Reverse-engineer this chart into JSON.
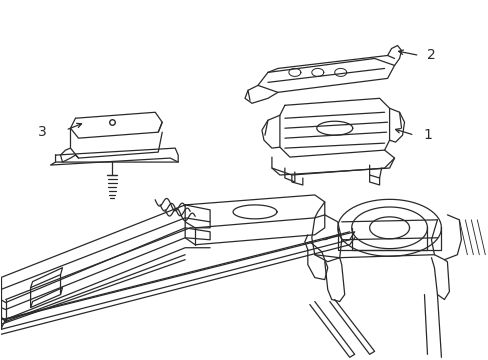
{
  "background_color": "#ffffff",
  "line_color": "#2a2a2a",
  "line_width": 0.9,
  "fig_width": 4.89,
  "fig_height": 3.6,
  "dpi": 100,
  "part1_label": "1",
  "part2_label": "2",
  "part3_label": "3",
  "label_fontsize": 10
}
